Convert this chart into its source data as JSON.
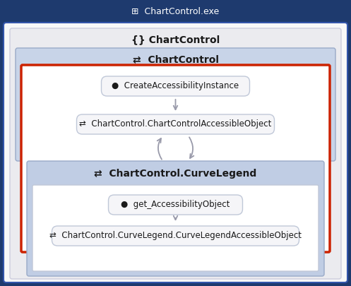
{
  "title": "ChartControl.exe",
  "bg_outer": "#1e3a6e",
  "bg_body": "#f8f8f8",
  "bg_namespace_box": "#e8e8ec",
  "bg_chartcontrol_header": "#c8d4e8",
  "bg_curveleg_header": "#c0cde4",
  "bg_white_content": "#ffffff",
  "red_border": "#cc2200",
  "box_border": "#c0c8d8",
  "blue_box_border": "#99aac8",
  "outer_border": "#3355aa",
  "text_dark": "#1a1a1a",
  "text_white": "#ffffff",
  "arrow_color": "#999aaa",
  "title_bar_bg": "#1e3a6e",
  "namespace_label": "{} ChartControl",
  "chartcontrol_label": "ChartControl",
  "method1_label": "CreateAccessibilityInstance",
  "class1_label": "ChartControl.ChartControlAccessibleObject",
  "curvelength_label": "ChartControl.CurveLegend",
  "method2_label": "get_AccessibilityObject",
  "class2_label": "ChartControl.CurveLegend.CurveLegendAccessibleObject",
  "icon_method": "●",
  "icon_class": "⇄"
}
